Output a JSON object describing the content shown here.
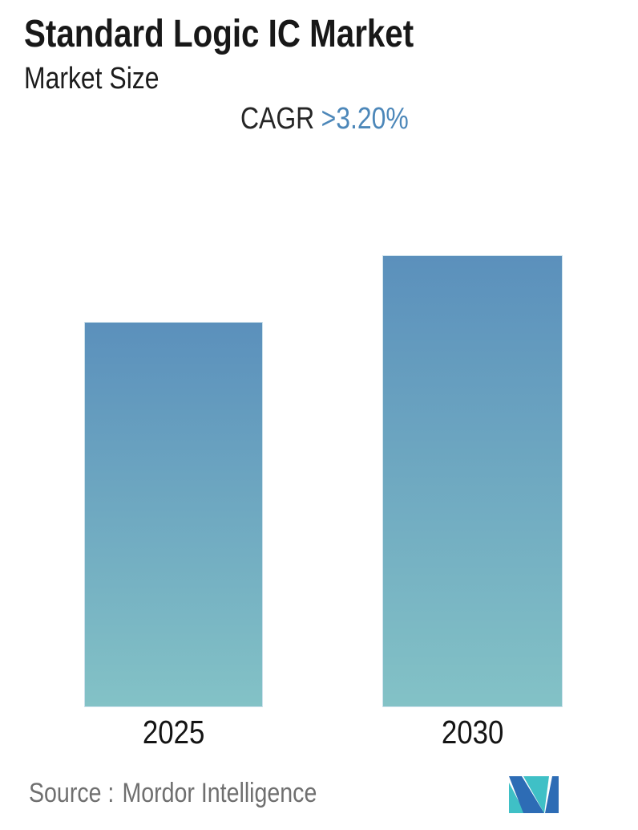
{
  "header": {
    "title": "Standard Logic IC Market",
    "subtitle": "Market Size",
    "cagr_label": "CAGR",
    "cagr_value": ">3.20%"
  },
  "chart_data": {
    "type": "bar",
    "title": "Standard Logic IC Market",
    "subtitle": "Market Size",
    "categories": [
      "2025",
      "2030"
    ],
    "values_relative": [
      0.853,
      1.0
    ],
    "cagr": ">3.20%",
    "xlabel": "",
    "ylabel": "",
    "axis_ticks_visible": false,
    "grid": false,
    "legend": false,
    "note": "No numeric axis shown; bar heights imply 2030 ≈ 1.17 × 2025, consistent with CAGR >3.20% over 2025–2030",
    "bar_gradient_top": "#5b90bc",
    "bar_gradient_bottom": "#83c2c6"
  },
  "footer": {
    "source_label": "Source :",
    "source_value": "Mordor Intelligence",
    "logo_name": "mordor-intelligence-logo",
    "logo_blue": "#2d6cb5",
    "logo_teal": "#3fc0c6"
  },
  "colors": {
    "accent_blue": "#4c87b9",
    "text_dark": "#1a1a1a",
    "text_gray": "#6f6f6f",
    "background": "#ffffff"
  }
}
